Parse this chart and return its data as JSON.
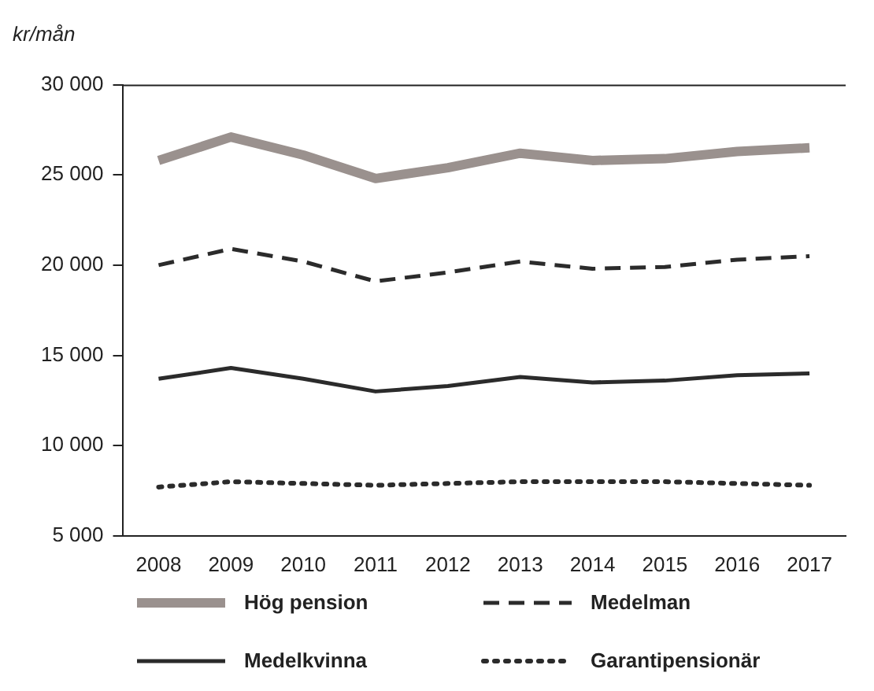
{
  "chart_data": {
    "type": "line",
    "ylabel": "kr/mån",
    "categories": [
      "2008",
      "2009",
      "2010",
      "2011",
      "2012",
      "2013",
      "2014",
      "2015",
      "2016",
      "2017"
    ],
    "series": [
      {
        "name": "Hög pension",
        "color": "#9a918e",
        "line_style": "solid",
        "values": [
          25800,
          27100,
          26100,
          24800,
          25400,
          26200,
          25800,
          25900,
          26300,
          26500
        ]
      },
      {
        "name": "Medelman",
        "color": "#2b2b2b",
        "line_style": "dashed",
        "values": [
          20000,
          20900,
          20200,
          19100,
          19600,
          20200,
          19800,
          19900,
          20300,
          20500
        ]
      },
      {
        "name": "Medelkvinna",
        "color": "#2b2b2b",
        "line_style": "solid",
        "values": [
          13700,
          14300,
          13700,
          13000,
          13300,
          13800,
          13500,
          13600,
          13900,
          14000
        ]
      },
      {
        "name": "Garantipensionär",
        "color": "#2b2b2b",
        "line_style": "dotted",
        "values": [
          7700,
          8000,
          7900,
          7800,
          7900,
          8000,
          8000,
          8000,
          7900,
          7800
        ]
      }
    ],
    "ylim": [
      5000,
      30000
    ],
    "yticks": [
      {
        "value": 5000,
        "label": "5 000"
      },
      {
        "value": 10000,
        "label": "10 000"
      },
      {
        "value": 15000,
        "label": "15 000"
      },
      {
        "value": 20000,
        "label": "20 000"
      },
      {
        "value": 25000,
        "label": "25 000"
      },
      {
        "value": 30000,
        "label": "30 000"
      }
    ],
    "grid": false,
    "legend": "bottom",
    "marker": "none"
  }
}
